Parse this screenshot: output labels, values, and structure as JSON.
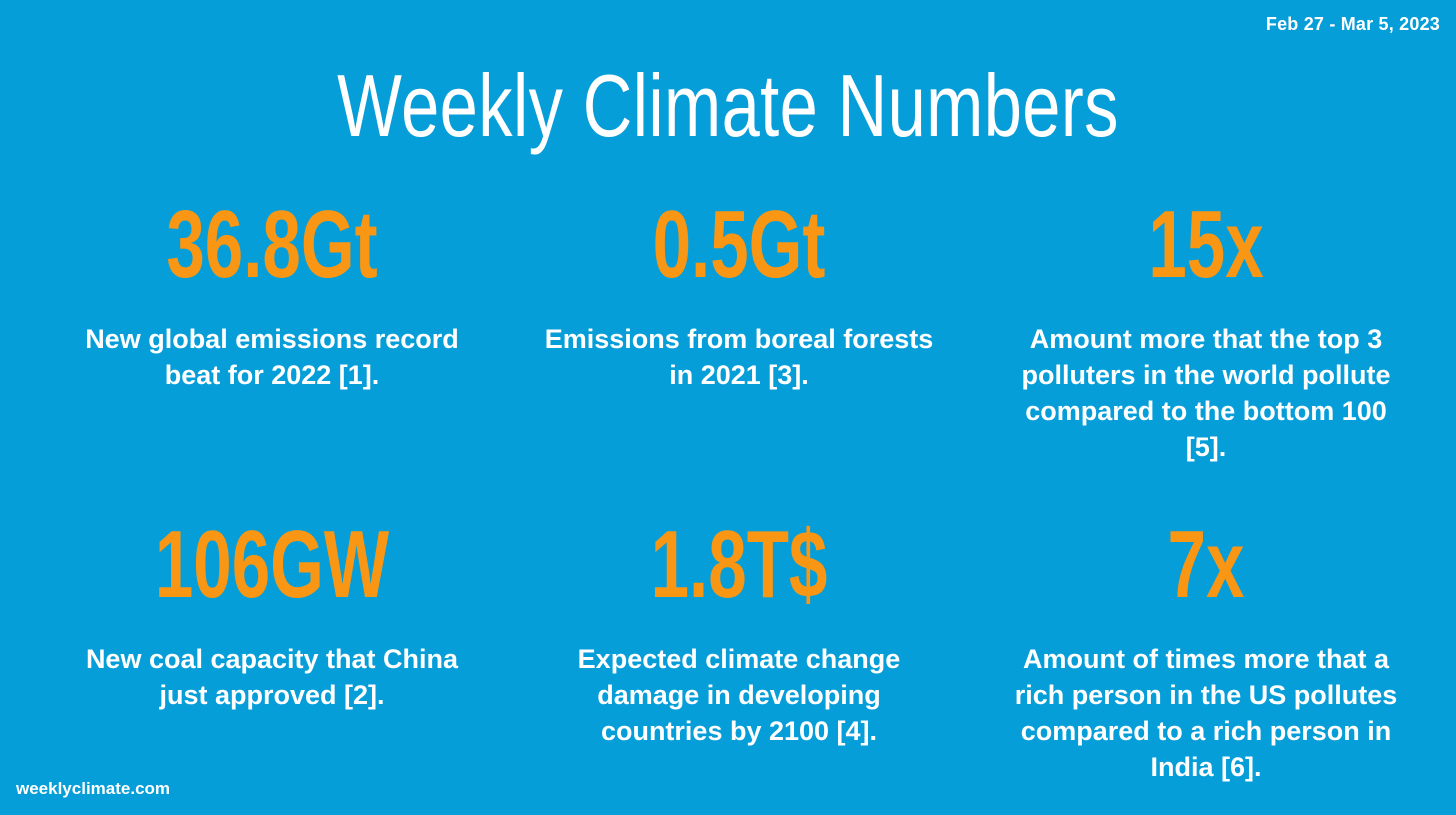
{
  "date_range": "Feb 27 - Mar 5, 2023",
  "title": "Weekly Climate Numbers",
  "stats": [
    {
      "value": "36.8Gt",
      "description": "New global emissions record beat for 2022 [1]."
    },
    {
      "value": "0.5Gt",
      "description": "Emissions from boreal forests in 2021 [3]."
    },
    {
      "value": "15x",
      "description": "Amount more that the top 3 polluters in the world pollute compared to the bottom 100 [5]."
    },
    {
      "value": "106GW",
      "description": "New coal capacity that China just approved [2]."
    },
    {
      "value": "1.8T$",
      "description": "Expected climate change damage in developing countries by 2100 [4]."
    },
    {
      "value": "7x",
      "description": "Amount of times more that a rich person in the US pollutes compared to a rich person in India [6]."
    }
  ],
  "footer": "weeklyclimate.com",
  "colors": {
    "background": "#059ed9",
    "value": "#f99614",
    "text": "#ffffff"
  }
}
